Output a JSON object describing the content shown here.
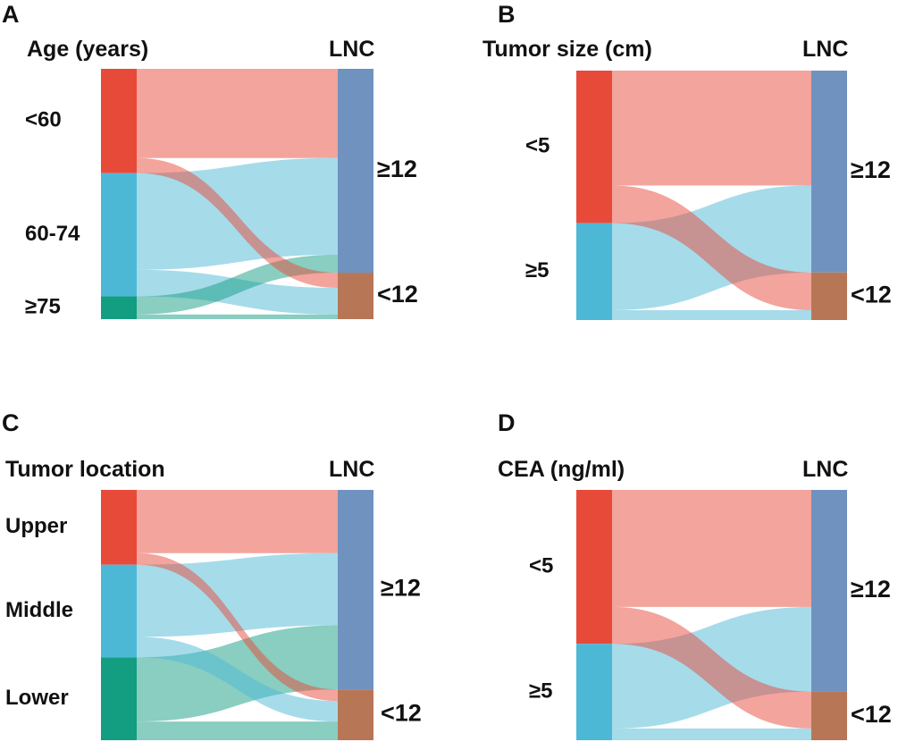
{
  "chart_data": [
    {
      "type": "sankey",
      "panel": "A",
      "left_title": "Age (years)",
      "right_title": "LNC",
      "colors": {
        "<60": "#e84a3a",
        "60-74": "#4db8d6",
        "≥75": "#139d81",
        "≥12": "#7092bf",
        "<12": "#b77757"
      },
      "left_nodes": [
        {
          "label": "<60",
          "value": 110
        },
        {
          "label": "60-74",
          "value": 130
        },
        {
          "label": "≥75",
          "value": 24
        }
      ],
      "right_nodes": [
        {
          "label": "≥12",
          "value": 215
        },
        {
          "label": "<12",
          "value": 49
        }
      ],
      "flows": [
        {
          "source": "<60",
          "target": "≥12",
          "value": 94
        },
        {
          "source": "<60",
          "target": "<12",
          "value": 16
        },
        {
          "source": "60-74",
          "target": "≥12",
          "value": 102
        },
        {
          "source": "60-74",
          "target": "<12",
          "value": 28
        },
        {
          "source": "≥75",
          "target": "≥12",
          "value": 19
        },
        {
          "source": "≥75",
          "target": "<12",
          "value": 5
        }
      ]
    },
    {
      "type": "sankey",
      "panel": "B",
      "left_title": "Tumor size (cm)",
      "right_title": "LNC",
      "colors": {
        "<5": "#e84a3a",
        "≥5": "#4db8d6",
        "≥12": "#7092bf",
        "<12": "#b77757"
      },
      "left_nodes": [
        {
          "label": "<5",
          "value": 170
        },
        {
          "label": "≥5",
          "value": 108
        }
      ],
      "right_nodes": [
        {
          "label": "≥12",
          "value": 225
        },
        {
          "label": "<12",
          "value": 53
        }
      ],
      "flows": [
        {
          "source": "<5",
          "target": "≥12",
          "value": 128
        },
        {
          "source": "<5",
          "target": "<12",
          "value": 42
        },
        {
          "source": "≥5",
          "target": "≥12",
          "value": 97
        },
        {
          "source": "≥5",
          "target": "<12",
          "value": 11
        }
      ]
    },
    {
      "type": "sankey",
      "panel": "C",
      "left_title": "Tumor location",
      "right_title": "LNC",
      "colors": {
        "Upper": "#e84a3a",
        "Middle": "#4db8d6",
        "Lower": "#139d81",
        "≥12": "#7092bf",
        "<12": "#b77757"
      },
      "left_nodes": [
        {
          "label": "Upper",
          "value": 84
        },
        {
          "label": "Middle",
          "value": 104
        },
        {
          "label": "Lower",
          "value": 93
        }
      ],
      "right_nodes": [
        {
          "label": "≥12",
          "value": 224
        },
        {
          "label": "<12",
          "value": 57
        }
      ],
      "flows": [
        {
          "source": "Upper",
          "target": "≥12",
          "value": 71
        },
        {
          "source": "Upper",
          "target": "<12",
          "value": 13
        },
        {
          "source": "Middle",
          "target": "≥12",
          "value": 81
        },
        {
          "source": "Middle",
          "target": "<12",
          "value": 23
        },
        {
          "source": "Lower",
          "target": "≥12",
          "value": 72
        },
        {
          "source": "Lower",
          "target": "<12",
          "value": 21
        }
      ]
    },
    {
      "type": "sankey",
      "panel": "D",
      "left_title": "CEA (ng/ml)",
      "right_title": "LNC",
      "colors": {
        "<5": "#e84a3a",
        "≥5": "#4db8d6",
        "≥12": "#7092bf",
        "<12": "#b77757"
      },
      "left_nodes": [
        {
          "label": "<5",
          "value": 171
        },
        {
          "label": "≥5",
          "value": 107
        }
      ],
      "right_nodes": [
        {
          "label": "≥12",
          "value": 224
        },
        {
          "label": "<12",
          "value": 54
        }
      ],
      "flows": [
        {
          "source": "<5",
          "target": "≥12",
          "value": 130
        },
        {
          "source": "<5",
          "target": "<12",
          "value": 41
        },
        {
          "source": "≥5",
          "target": "≥12",
          "value": 94
        },
        {
          "source": "≥5",
          "target": "<12",
          "value": 13
        }
      ]
    }
  ]
}
